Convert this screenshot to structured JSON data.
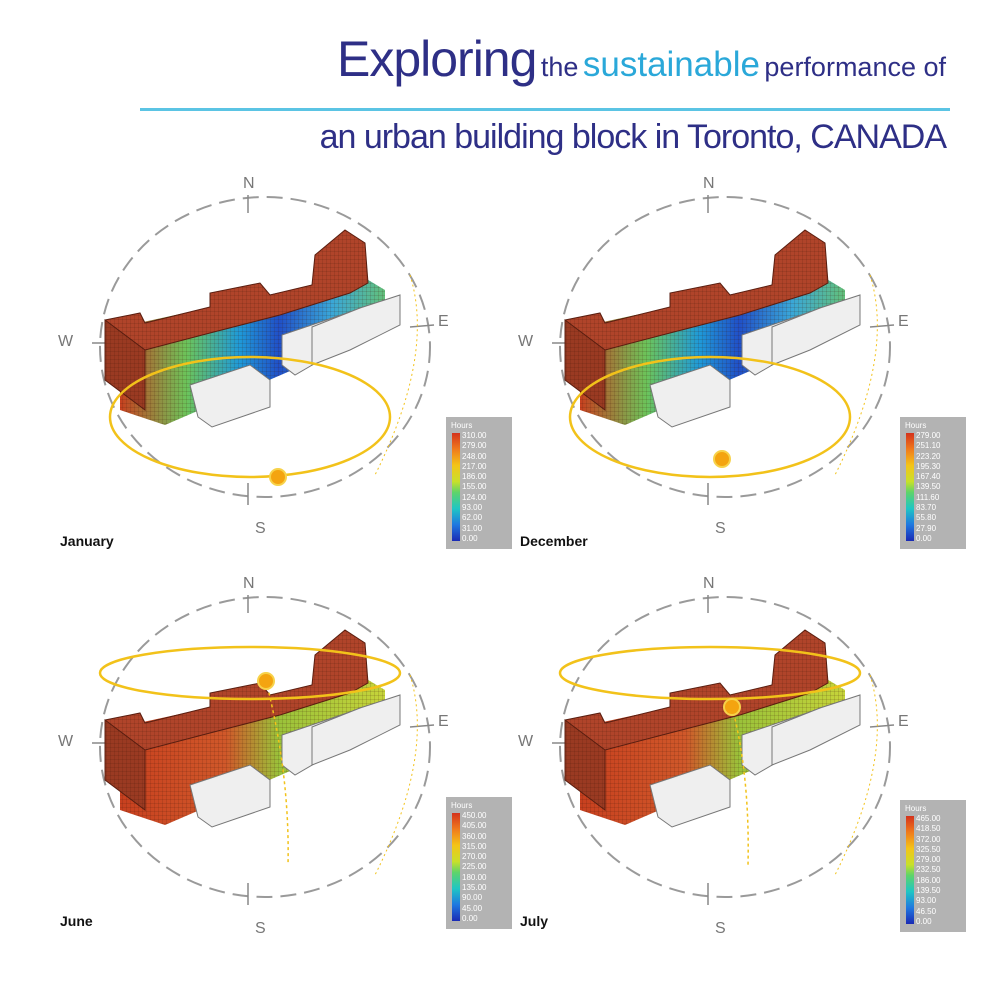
{
  "title": {
    "word1": "Exploring",
    "word2": "the",
    "word3": "sustainable",
    "word4": "performance of",
    "line2": "an urban building block in Toronto, CANADA"
  },
  "compass": {
    "north": "N",
    "south": "S",
    "east": "E",
    "west": "W"
  },
  "legend_title": "Hours",
  "panels": [
    {
      "month": "January",
      "legend": [
        "310.00",
        "279.00",
        "248.00",
        "217.00",
        "186.00",
        "155.00",
        "124.00",
        "93.00",
        "62.00",
        "31.00",
        "0.00"
      ]
    },
    {
      "month": "December",
      "legend": [
        "279.00",
        "251.10",
        "223.20",
        "195.30",
        "167.40",
        "139.50",
        "111.60",
        "83.70",
        "55.80",
        "27.90",
        "0.00"
      ]
    },
    {
      "month": "June",
      "legend": [
        "450.00",
        "405.00",
        "360.00",
        "315.00",
        "270.00",
        "225.00",
        "180.00",
        "135.00",
        "90.00",
        "45.00",
        "0.00"
      ]
    },
    {
      "month": "July",
      "legend": [
        "465.00",
        "418.50",
        "372.00",
        "325.50",
        "279.00",
        "232.50",
        "186.00",
        "139.50",
        "93.00",
        "46.50",
        "0.00"
      ]
    }
  ],
  "colors": {
    "title": "#2e2f86",
    "accent": "#2aa8d9",
    "rule": "#5bc4e4",
    "building": "#b0442a",
    "sunpath": "#f2c21a",
    "compass_ring": "#9a9a9a"
  },
  "icons": [
    "sun-icon",
    "compass-rose"
  ]
}
